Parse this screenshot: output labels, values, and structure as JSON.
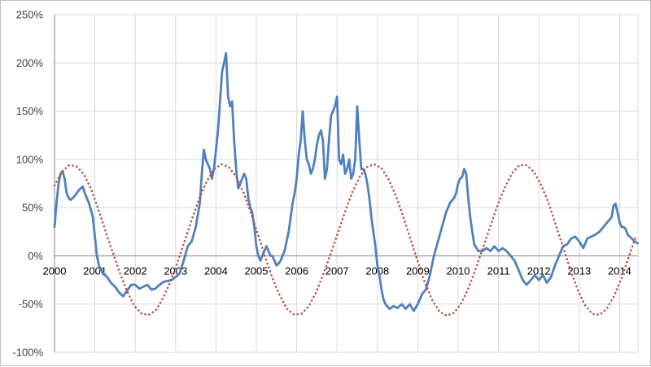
{
  "chart_data": {
    "type": "line",
    "title": "",
    "xlabel": "",
    "ylabel": "",
    "xlim": [
      2000,
      2014.5
    ],
    "ylim": [
      -100,
      250
    ],
    "x_ticks": [
      "2000",
      "2001",
      "2002",
      "2003",
      "2004",
      "2005",
      "2006",
      "2007",
      "2008",
      "2009",
      "2010",
      "2011",
      "2012",
      "2013",
      "2014"
    ],
    "y_ticks": [
      "-100%",
      "-50%",
      "0%",
      "50%",
      "100%",
      "150%",
      "200%",
      "250%"
    ],
    "y_tick_values": [
      -100,
      -50,
      0,
      50,
      100,
      150,
      200,
      250
    ],
    "grid": true,
    "legend": "none",
    "colors": {
      "series_line": "#4f81bd",
      "dotted_curve": "#c0504d",
      "grid": "#d9d9d9"
    },
    "series": [
      {
        "style": "solid",
        "x": [
          2000.0,
          2000.05,
          2000.1,
          2000.15,
          2000.2,
          2000.25,
          2000.3,
          2000.35,
          2000.4,
          2000.5,
          2000.6,
          2000.7,
          2000.75,
          2000.8,
          2000.85,
          2000.9,
          2000.95,
          2001.0,
          2001.05,
          2001.1,
          2001.2,
          2001.3,
          2001.4,
          2001.5,
          2001.6,
          2001.7,
          2001.8,
          2001.9,
          2002.0,
          2002.1,
          2002.2,
          2002.3,
          2002.4,
          2002.5,
          2002.6,
          2002.7,
          2002.8,
          2002.9,
          2003.0,
          2003.1,
          2003.2,
          2003.3,
          2003.4,
          2003.5,
          2003.6,
          2003.65,
          2003.7,
          2003.75,
          2003.8,
          2003.85,
          2003.9,
          2003.95,
          2004.0,
          2004.05,
          2004.1,
          2004.15,
          2004.2,
          2004.25,
          2004.3,
          2004.35,
          2004.4,
          2004.45,
          2004.5,
          2004.55,
          2004.6,
          2004.65,
          2004.7,
          2004.75,
          2004.8,
          2004.85,
          2004.9,
          2004.95,
          2005.0,
          2005.05,
          2005.1,
          2005.15,
          2005.2,
          2005.25,
          2005.3,
          2005.35,
          2005.4,
          2005.45,
          2005.5,
          2005.55,
          2005.6,
          2005.65,
          2005.7,
          2005.75,
          2005.8,
          2005.85,
          2005.9,
          2005.95,
          2006.0,
          2006.05,
          2006.1,
          2006.15,
          2006.2,
          2006.25,
          2006.3,
          2006.35,
          2006.4,
          2006.45,
          2006.5,
          2006.55,
          2006.6,
          2006.65,
          2006.7,
          2006.75,
          2006.8,
          2006.85,
          2006.9,
          2006.95,
          2007.0,
          2007.05,
          2007.1,
          2007.15,
          2007.2,
          2007.25,
          2007.3,
          2007.35,
          2007.4,
          2007.45,
          2007.5,
          2007.55,
          2007.6,
          2007.65,
          2007.7,
          2007.75,
          2007.8,
          2007.85,
          2007.9,
          2007.95,
          2008.0,
          2008.05,
          2008.1,
          2008.15,
          2008.2,
          2008.3,
          2008.4,
          2008.5,
          2008.6,
          2008.7,
          2008.8,
          2008.9,
          2009.0,
          2009.1,
          2009.2,
          2009.3,
          2009.4,
          2009.5,
          2009.6,
          2009.7,
          2009.8,
          2009.9,
          2009.95,
          2010.0,
          2010.05,
          2010.1,
          2010.15,
          2010.2,
          2010.25,
          2010.3,
          2010.35,
          2010.4,
          2010.5,
          2010.6,
          2010.7,
          2010.8,
          2010.9,
          2011.0,
          2011.1,
          2011.2,
          2011.3,
          2011.4,
          2011.5,
          2011.6,
          2011.7,
          2011.8,
          2011.9,
          2012.0,
          2012.1,
          2012.2,
          2012.3,
          2012.4,
          2012.5,
          2012.6,
          2012.7,
          2012.8,
          2012.9,
          2013.0,
          2013.1,
          2013.2,
          2013.3,
          2013.4,
          2013.5,
          2013.6,
          2013.7,
          2013.8,
          2013.85,
          2013.9,
          2013.95,
          2014.0,
          2014.05,
          2014.1,
          2014.15,
          2014.2,
          2014.25,
          2014.3,
          2014.35,
          2014.4,
          2014.45
        ],
        "values": [
          30,
          55,
          75,
          85,
          88,
          80,
          65,
          60,
          58,
          62,
          68,
          72,
          65,
          60,
          55,
          48,
          40,
          20,
          0,
          -10,
          -18,
          -22,
          -28,
          -32,
          -38,
          -42,
          -36,
          -30,
          -30,
          -34,
          -32,
          -30,
          -35,
          -34,
          -30,
          -27,
          -26,
          -25,
          -22,
          -18,
          -5,
          10,
          15,
          30,
          55,
          85,
          110,
          100,
          95,
          90,
          80,
          90,
          110,
          130,
          160,
          190,
          200,
          210,
          165,
          155,
          160,
          120,
          90,
          70,
          75,
          80,
          85,
          80,
          60,
          50,
          45,
          30,
          10,
          0,
          -5,
          0,
          5,
          10,
          5,
          0,
          0,
          -5,
          -10,
          -8,
          -5,
          0,
          5,
          15,
          25,
          40,
          55,
          65,
          80,
          105,
          120,
          150,
          120,
          100,
          95,
          85,
          90,
          100,
          115,
          125,
          130,
          120,
          80,
          90,
          120,
          145,
          150,
          155,
          165,
          100,
          95,
          105,
          85,
          90,
          100,
          80,
          85,
          100,
          155,
          120,
          90,
          90,
          85,
          75,
          60,
          40,
          25,
          10,
          -10,
          -20,
          -35,
          -45,
          -50,
          -55,
          -52,
          -54,
          -50,
          -55,
          -50,
          -57,
          -50,
          -40,
          -35,
          -20,
          0,
          15,
          30,
          45,
          55,
          60,
          65,
          75,
          80,
          82,
          90,
          85,
          60,
          40,
          25,
          12,
          5,
          5,
          8,
          5,
          10,
          5,
          8,
          5,
          0,
          -5,
          -15,
          -25,
          -30,
          -25,
          -20,
          -25,
          -20,
          -28,
          -22,
          -10,
          0,
          10,
          12,
          18,
          20,
          15,
          8,
          18,
          20,
          22,
          25,
          30,
          35,
          40,
          52,
          54,
          45,
          35,
          30,
          30,
          28,
          22,
          20,
          18,
          16,
          14,
          13
        ]
      },
      {
        "style": "dotted",
        "x": [
          2000.0,
          2000.18,
          2000.36,
          2000.54,
          2000.72,
          2000.9,
          2001.08,
          2001.26,
          2001.44,
          2001.62,
          2001.8,
          2001.98,
          2002.16,
          2002.34,
          2002.52,
          2002.7,
          2002.88,
          2003.06,
          2003.24,
          2003.42,
          2003.6,
          2003.78,
          2003.96,
          2004.14,
          2004.32,
          2004.5,
          2004.68,
          2004.86,
          2005.04,
          2005.22,
          2005.4,
          2005.58,
          2005.76,
          2005.94,
          2006.12,
          2006.3,
          2006.48,
          2006.66,
          2006.84,
          2007.02,
          2007.2,
          2007.38,
          2007.56,
          2007.74,
          2007.92,
          2008.1,
          2008.28,
          2008.46,
          2008.64,
          2008.82,
          2009.0,
          2009.18,
          2009.36,
          2009.54,
          2009.72,
          2009.9,
          2010.08,
          2010.26,
          2010.44,
          2010.62,
          2010.8,
          2010.98,
          2011.16,
          2011.34,
          2011.52,
          2011.7,
          2011.88,
          2012.06,
          2012.24,
          2012.42,
          2012.6,
          2012.78,
          2012.96,
          2013.14,
          2013.32,
          2013.5,
          2013.68,
          2013.86,
          2014.04,
          2014.22,
          2014.4
        ],
        "values": [
          73,
          87,
          94,
          93,
          85,
          70,
          49,
          26,
          4,
          -18,
          -37,
          -52,
          -60,
          -61,
          -56,
          -43,
          -26,
          -5,
          17,
          40,
          61,
          78,
          90,
          95,
          92,
          82,
          66,
          45,
          22,
          -1,
          -23,
          -41,
          -55,
          -61,
          -60,
          -52,
          -38,
          -19,
          2,
          24,
          46,
          66,
          82,
          92,
          95,
          91,
          79,
          62,
          41,
          17,
          -6,
          -28,
          -46,
          -58,
          -62,
          -59,
          -49,
          -33,
          -13,
          9,
          31,
          53,
          71,
          86,
          94,
          94,
          87,
          73,
          55,
          32,
          9,
          -14,
          -35,
          -51,
          -60,
          -61,
          -55,
          -42,
          -24,
          -2,
          20
        ]
      }
    ]
  }
}
